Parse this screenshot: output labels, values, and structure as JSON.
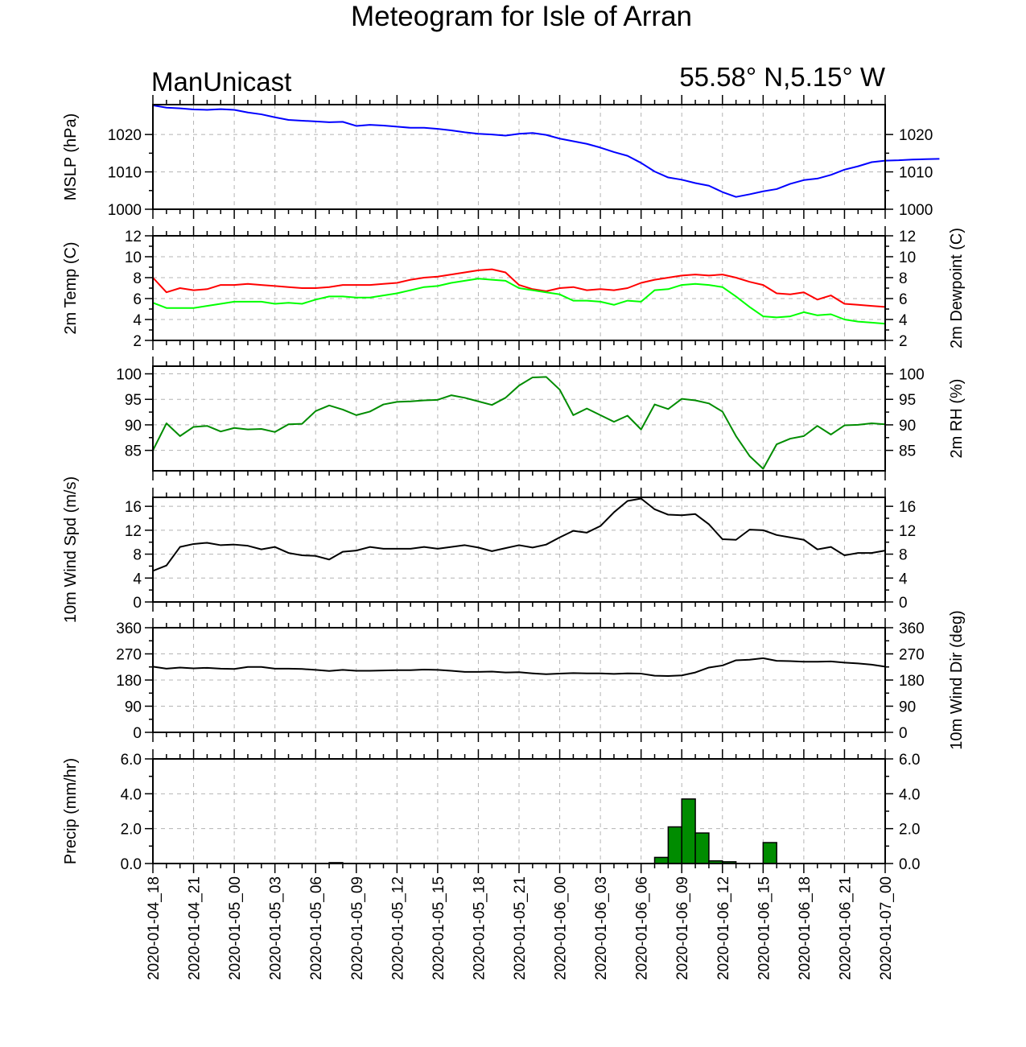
{
  "title": "Meteogram for Isle of Arran",
  "left_label": "ManUnicast",
  "right_label": "55.58° N,5.15° W",
  "chart_data": [
    {
      "type": "line",
      "ylabel": "MSLP (hPa)",
      "ylabel_right": "",
      "ylim": [
        1000,
        1028
      ],
      "yticks": [
        1000,
        1010,
        1020
      ],
      "series": [
        {
          "color": "#0000ff",
          "values": [
            1027.8,
            1027.2,
            1027.0,
            1026.7,
            1026.6,
            1026.8,
            1026.6,
            1025.9,
            1025.4,
            1024.6,
            1023.9,
            1023.7,
            1023.5,
            1023.3,
            1023.4,
            1022.3,
            1022.6,
            1022.4,
            1022.1,
            1021.8,
            1021.8,
            1021.5,
            1021.1,
            1020.6,
            1020.2,
            1020.0,
            1019.7,
            1020.2,
            1020.4,
            1019.9,
            1018.9,
            1018.2,
            1017.5,
            1016.5,
            1015.3,
            1014.3,
            1012.4,
            1010.1,
            1008.5,
            1007.9,
            1007.0,
            1006.3,
            1004.6,
            1003.3,
            1004.0,
            1004.8,
            1005.4,
            1006.8,
            1007.8,
            1008.2,
            1009.2,
            1010.6,
            1011.5,
            1012.6,
            1013.0,
            1013.1,
            1013.3,
            1013.4,
            1013.5
          ]
        }
      ]
    },
    {
      "type": "line",
      "ylabel": "2m Temp (C)",
      "ylabel_right": "2m Dewpoint (C)",
      "ylim": [
        2,
        12
      ],
      "yticks": [
        2,
        4,
        6,
        8,
        10,
        12
      ],
      "series": [
        {
          "color": "#ff0000",
          "values": [
            8.0,
            6.6,
            7.0,
            6.8,
            6.9,
            7.3,
            7.3,
            7.4,
            7.3,
            7.2,
            7.1,
            7.0,
            7.0,
            7.1,
            7.3,
            7.3,
            7.3,
            7.4,
            7.5,
            7.8,
            8.0,
            8.1,
            8.3,
            8.5,
            8.7,
            8.8,
            8.5,
            7.3,
            6.9,
            6.7,
            7.0,
            7.1,
            6.8,
            6.9,
            6.8,
            7.0,
            7.5,
            7.8,
            8.0,
            8.2,
            8.3,
            8.2,
            8.3,
            8.0,
            7.6,
            7.3,
            6.5,
            6.4,
            6.6,
            5.9,
            6.3,
            5.5,
            5.4,
            5.3,
            5.2
          ]
        },
        {
          "color": "#00ff00",
          "values": [
            5.6,
            5.1,
            5.1,
            5.1,
            5.3,
            5.5,
            5.7,
            5.7,
            5.7,
            5.5,
            5.6,
            5.5,
            5.9,
            6.2,
            6.2,
            6.1,
            6.1,
            6.3,
            6.5,
            6.8,
            7.1,
            7.2,
            7.5,
            7.7,
            7.9,
            7.8,
            7.7,
            7.0,
            6.8,
            6.6,
            6.4,
            5.8,
            5.8,
            5.7,
            5.4,
            5.8,
            5.7,
            6.8,
            6.9,
            7.3,
            7.4,
            7.3,
            7.1,
            6.2,
            5.2,
            4.3,
            4.2,
            4.3,
            4.7,
            4.4,
            4.5,
            4.0,
            3.8,
            3.7,
            3.6
          ]
        }
      ]
    },
    {
      "type": "line",
      "ylabel": "",
      "ylabel_right": "2m RH (%)",
      "ylim": [
        81,
        101.5
      ],
      "yticks": [
        85,
        90,
        95,
        100
      ],
      "series": [
        {
          "color": "#008c00",
          "values": [
            85.0,
            90.3,
            87.8,
            89.6,
            89.8,
            88.7,
            89.4,
            89.1,
            89.2,
            88.6,
            90.1,
            90.2,
            92.7,
            93.8,
            93.0,
            91.9,
            92.6,
            94.0,
            94.5,
            94.6,
            94.8,
            94.9,
            95.8,
            95.3,
            94.6,
            93.9,
            95.3,
            97.7,
            99.3,
            99.4,
            96.9,
            91.9,
            93.2,
            91.9,
            90.6,
            91.8,
            89.1,
            94.0,
            93.1,
            95.1,
            94.8,
            94.2,
            92.6,
            87.8,
            83.9,
            81.4,
            86.2,
            87.3,
            87.8,
            89.8,
            88.1,
            89.9,
            90.0,
            90.3,
            90.1
          ]
        }
      ]
    },
    {
      "type": "line",
      "ylabel": "10m Wind Spd (m/s)",
      "ylabel_right": "",
      "ylim": [
        0,
        17.5
      ],
      "yticks": [
        0,
        4,
        8,
        12,
        16
      ],
      "series": [
        {
          "color": "#000000",
          "values": [
            5.2,
            6.1,
            9.2,
            9.7,
            9.9,
            9.5,
            9.6,
            9.4,
            8.8,
            9.2,
            8.2,
            7.8,
            7.7,
            7.1,
            8.4,
            8.6,
            9.2,
            8.9,
            8.9,
            8.9,
            9.2,
            8.9,
            9.2,
            9.5,
            9.1,
            8.5,
            9.0,
            9.5,
            9.1,
            9.6,
            10.8,
            11.9,
            11.6,
            12.7,
            15.0,
            16.9,
            17.3,
            15.5,
            14.6,
            14.5,
            14.7,
            13.0,
            10.5,
            10.4,
            12.1,
            12.0,
            11.2,
            10.8,
            10.4,
            8.8,
            9.2,
            7.8,
            8.2,
            8.2,
            8.6
          ]
        }
      ]
    },
    {
      "type": "line",
      "ylabel": "",
      "ylabel_right": "10m Wind Dir (deg)",
      "ylim": [
        0,
        360
      ],
      "yticks": [
        0,
        90,
        180,
        270,
        360
      ],
      "series": [
        {
          "color": "#000000",
          "values": [
            226,
            219,
            223,
            220,
            222,
            219,
            218,
            225,
            225,
            219,
            219,
            218,
            215,
            211,
            215,
            212,
            212,
            213,
            214,
            214,
            216,
            215,
            212,
            208,
            208,
            209,
            206,
            207,
            203,
            200,
            202,
            204,
            203,
            203,
            201,
            203,
            202,
            195,
            194,
            196,
            206,
            223,
            230,
            248,
            250,
            255,
            246,
            245,
            243,
            243,
            244,
            240,
            237,
            233,
            226
          ]
        }
      ]
    },
    {
      "type": "bar",
      "ylabel": "Precip (mm/hr)",
      "ylabel_right": "",
      "ylim": [
        0,
        6
      ],
      "yticks": [
        "0.0",
        "2.0",
        "4.0",
        "6.0"
      ],
      "color": "#008c00",
      "values": [
        0,
        0,
        0,
        0,
        0,
        0,
        0,
        0,
        0,
        0,
        0,
        0,
        0,
        0.05,
        0,
        0,
        0,
        0,
        0,
        0,
        0,
        0,
        0,
        0,
        0,
        0,
        0,
        0,
        0,
        0,
        0,
        0,
        0,
        0,
        0,
        0,
        0,
        0.35,
        2.1,
        3.7,
        1.75,
        0.15,
        0.1,
        0,
        0,
        1.2,
        0,
        0,
        0,
        0,
        0,
        0,
        0,
        0
      ]
    }
  ],
  "x_ticks": [
    "2020-01-04_18",
    "2020-01-04_21",
    "2020-01-05_00",
    "2020-01-05_03",
    "2020-01-05_06",
    "2020-01-05_09",
    "2020-01-05_12",
    "2020-01-05_15",
    "2020-01-05_18",
    "2020-01-05_21",
    "2020-01-06_00",
    "2020-01-06_03",
    "2020-01-06_06",
    "2020-01-06_09",
    "2020-01-06_12",
    "2020-01-06_15",
    "2020-01-06_18",
    "2020-01-06_21",
    "2020-01-07_00"
  ]
}
